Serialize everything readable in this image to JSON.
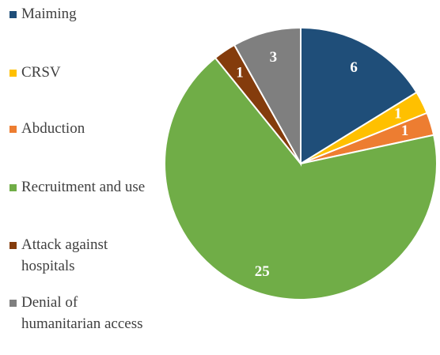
{
  "chart_data": {
    "type": "pie",
    "categories": [
      "Maiming",
      "CRSV",
      "Abduction",
      "Recruitment and use",
      "Attack against hospitals",
      "Denial of humanitarian access"
    ],
    "values": [
      6,
      1,
      1,
      25,
      1,
      3
    ],
    "colors": [
      "#1f4e79",
      "#ffc000",
      "#ed7d31",
      "#70ad47",
      "#843c0c",
      "#7f7f7f"
    ],
    "legend": "left"
  }
}
